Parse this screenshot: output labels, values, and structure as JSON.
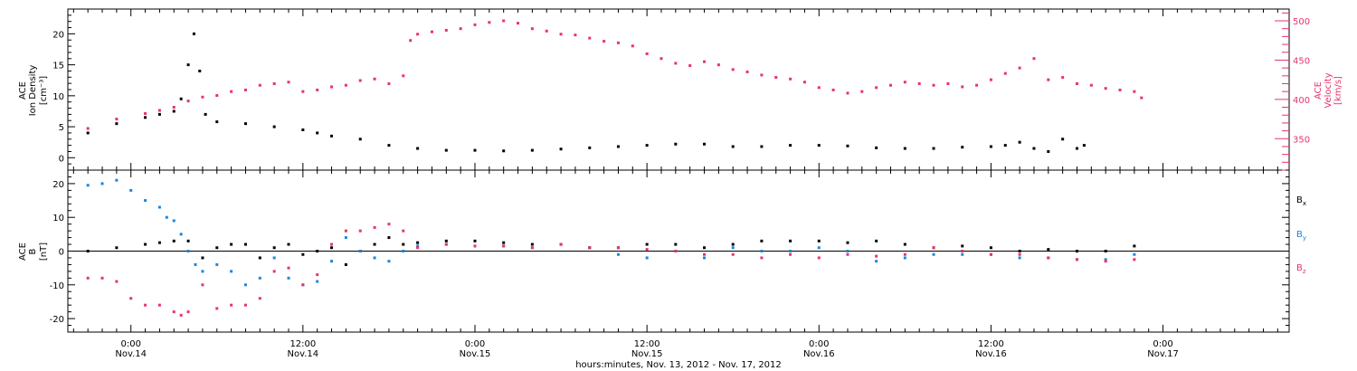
{
  "chart_data": [
    {
      "type": "scatter",
      "panel": "top",
      "ylabel_left": [
        "ACE",
        "Ion Density",
        "[cm⁻³]"
      ],
      "ylabel_right": [
        "ACE",
        "Velocity",
        "[km/s]"
      ],
      "ylim_left": [
        -2,
        24
      ],
      "ylim_right": [
        310,
        515
      ],
      "yticks_left": [
        0,
        5,
        10,
        15,
        20
      ],
      "yticks_right": [
        350,
        400,
        450,
        500
      ],
      "series": [
        {
          "key": "density",
          "axis": "left",
          "color": "#000000",
          "points": [
            [
              -3,
              4.0
            ],
            [
              -1,
              5.5
            ],
            [
              1,
              6.5
            ],
            [
              2,
              7.0
            ],
            [
              3,
              7.5
            ],
            [
              3.5,
              9.5
            ],
            [
              4,
              15.0
            ],
            [
              4.4,
              20.0
            ],
            [
              4.8,
              14.0
            ],
            [
              5.2,
              7.0
            ],
            [
              6,
              5.8
            ],
            [
              8,
              5.5
            ],
            [
              10,
              5.0
            ],
            [
              12,
              4.5
            ],
            [
              13,
              4.0
            ],
            [
              14,
              3.5
            ],
            [
              16,
              3.0
            ],
            [
              18,
              2.0
            ],
            [
              20,
              1.5
            ],
            [
              22,
              1.2
            ],
            [
              24,
              1.2
            ],
            [
              26,
              1.1
            ],
            [
              28,
              1.2
            ],
            [
              30,
              1.4
            ],
            [
              32,
              1.6
            ],
            [
              34,
              1.8
            ],
            [
              36,
              2.0
            ],
            [
              38,
              2.2
            ],
            [
              40,
              2.2
            ],
            [
              42,
              1.8
            ],
            [
              44,
              1.8
            ],
            [
              46,
              2.0
            ],
            [
              48,
              2.0
            ],
            [
              50,
              1.9
            ],
            [
              52,
              1.6
            ],
            [
              54,
              1.5
            ],
            [
              56,
              1.5
            ],
            [
              58,
              1.7
            ],
            [
              60,
              1.8
            ],
            [
              61,
              2.0
            ],
            [
              62,
              2.5
            ],
            [
              63,
              1.5
            ],
            [
              64,
              1.0
            ],
            [
              65,
              3.0
            ],
            [
              66,
              1.5
            ],
            [
              66.5,
              2.0
            ]
          ]
        },
        {
          "key": "velocity",
          "axis": "right",
          "color": "#e8336b",
          "points": [
            [
              -3,
              363
            ],
            [
              -1,
              375
            ],
            [
              1,
              382
            ],
            [
              2,
              386
            ],
            [
              3,
              390
            ],
            [
              4,
              398
            ],
            [
              5,
              403
            ],
            [
              6,
              405
            ],
            [
              7,
              410
            ],
            [
              8,
              412
            ],
            [
              9,
              418
            ],
            [
              10,
              420
            ],
            [
              11,
              422
            ],
            [
              12,
              410
            ],
            [
              13,
              412
            ],
            [
              14,
              416
            ],
            [
              15,
              418
            ],
            [
              16,
              424
            ],
            [
              17,
              426
            ],
            [
              18,
              420
            ],
            [
              19,
              430
            ],
            [
              19.5,
              475
            ],
            [
              20,
              483
            ],
            [
              21,
              486
            ],
            [
              22,
              488
            ],
            [
              23,
              490
            ],
            [
              24,
              495
            ],
            [
              25,
              498
            ],
            [
              26,
              500
            ],
            [
              27,
              497
            ],
            [
              28,
              490
            ],
            [
              29,
              487
            ],
            [
              30,
              483
            ],
            [
              31,
              482
            ],
            [
              32,
              478
            ],
            [
              33,
              474
            ],
            [
              34,
              472
            ],
            [
              35,
              468
            ],
            [
              36,
              458
            ],
            [
              37,
              452
            ],
            [
              38,
              446
            ],
            [
              39,
              443
            ],
            [
              40,
              448
            ],
            [
              41,
              444
            ],
            [
              42,
              438
            ],
            [
              43,
              435
            ],
            [
              44,
              431
            ],
            [
              45,
              428
            ],
            [
              46,
              426
            ],
            [
              47,
              422
            ],
            [
              48,
              415
            ],
            [
              49,
              412
            ],
            [
              50,
              408
            ],
            [
              51,
              410
            ],
            [
              52,
              415
            ],
            [
              53,
              418
            ],
            [
              54,
              422
            ],
            [
              55,
              420
            ],
            [
              56,
              418
            ],
            [
              57,
              420
            ],
            [
              58,
              416
            ],
            [
              59,
              418
            ],
            [
              60,
              425
            ],
            [
              61,
              433
            ],
            [
              62,
              440
            ],
            [
              63,
              452
            ],
            [
              64,
              425
            ],
            [
              65,
              428
            ],
            [
              66,
              420
            ],
            [
              67,
              418
            ],
            [
              68,
              414
            ],
            [
              69,
              412
            ],
            [
              70,
              410
            ],
            [
              70.5,
              402
            ]
          ]
        }
      ]
    },
    {
      "type": "scatter",
      "panel": "bottom",
      "ylabel_left": [
        "ACE",
        "B",
        "[nT]"
      ],
      "ylim": [
        -24,
        24
      ],
      "yticks": [
        -20,
        -10,
        0,
        10,
        20
      ],
      "zero_line": true,
      "legend": [
        {
          "label": "B",
          "sub": "x",
          "color": "#000000"
        },
        {
          "label": "B",
          "sub": "y",
          "color": "#1a86e0"
        },
        {
          "label": "B",
          "sub": "z",
          "color": "#e8336b"
        }
      ],
      "series": [
        {
          "key": "Bx",
          "color": "#000000",
          "points": [
            [
              -3,
              0
            ],
            [
              -1,
              1
            ],
            [
              1,
              2
            ],
            [
              2,
              2.5
            ],
            [
              3,
              3
            ],
            [
              4,
              3
            ],
            [
              5,
              -2
            ],
            [
              6,
              1
            ],
            [
              7,
              2
            ],
            [
              8,
              2
            ],
            [
              9,
              -2
            ],
            [
              10,
              1
            ],
            [
              11,
              2
            ],
            [
              12,
              -1
            ],
            [
              13,
              0
            ],
            [
              14,
              1
            ],
            [
              15,
              -4
            ],
            [
              16,
              0
            ],
            [
              17,
              2
            ],
            [
              18,
              4
            ],
            [
              19,
              2
            ],
            [
              20,
              2.5
            ],
            [
              22,
              3
            ],
            [
              24,
              3
            ],
            [
              26,
              2.5
            ],
            [
              28,
              2
            ],
            [
              30,
              2
            ],
            [
              32,
              1
            ],
            [
              34,
              1
            ],
            [
              36,
              2
            ],
            [
              38,
              2
            ],
            [
              40,
              1
            ],
            [
              42,
              2
            ],
            [
              44,
              3
            ],
            [
              46,
              3
            ],
            [
              48,
              3
            ],
            [
              50,
              2.5
            ],
            [
              52,
              3
            ],
            [
              54,
              2
            ],
            [
              56,
              1
            ],
            [
              58,
              1.5
            ],
            [
              60,
              1
            ],
            [
              62,
              0
            ],
            [
              64,
              0.5
            ],
            [
              66,
              0
            ],
            [
              68,
              0
            ],
            [
              70,
              1.5
            ]
          ]
        },
        {
          "key": "By",
          "color": "#1a86e0",
          "points": [
            [
              -3,
              19.5
            ],
            [
              -2,
              20
            ],
            [
              -1,
              21
            ],
            [
              0,
              18
            ],
            [
              1,
              15
            ],
            [
              2,
              13
            ],
            [
              2.5,
              10
            ],
            [
              3,
              9
            ],
            [
              3.5,
              5
            ],
            [
              4,
              0
            ],
            [
              4.5,
              -4
            ],
            [
              5,
              -6
            ],
            [
              6,
              -4
            ],
            [
              7,
              -6
            ],
            [
              8,
              -10
            ],
            [
              9,
              -8
            ],
            [
              10,
              -2
            ],
            [
              11,
              -8
            ],
            [
              12,
              -10
            ],
            [
              13,
              -9
            ],
            [
              14,
              -3
            ],
            [
              15,
              4
            ],
            [
              16,
              0
            ],
            [
              17,
              -2
            ],
            [
              18,
              -3
            ],
            [
              19,
              0
            ],
            [
              20,
              1.5
            ],
            [
              22,
              2
            ],
            [
              24,
              1.5
            ],
            [
              26,
              1.5
            ],
            [
              28,
              1
            ],
            [
              30,
              2
            ],
            [
              32,
              1
            ],
            [
              34,
              -1
            ],
            [
              36,
              -2
            ],
            [
              38,
              0
            ],
            [
              40,
              -2
            ],
            [
              42,
              1
            ],
            [
              44,
              0
            ],
            [
              46,
              0
            ],
            [
              48,
              1
            ],
            [
              50,
              0
            ],
            [
              52,
              -3
            ],
            [
              54,
              -2
            ],
            [
              56,
              -1
            ],
            [
              58,
              -1
            ],
            [
              60,
              -1
            ],
            [
              62,
              -2
            ],
            [
              64,
              -2
            ],
            [
              66,
              -2.5
            ],
            [
              68,
              -2.5
            ],
            [
              70,
              -1
            ]
          ]
        },
        {
          "key": "Bz",
          "color": "#e8336b",
          "points": [
            [
              -3,
              -8
            ],
            [
              -2,
              -8
            ],
            [
              -1,
              -9
            ],
            [
              0,
              -14
            ],
            [
              1,
              -16
            ],
            [
              2,
              -16
            ],
            [
              3,
              -18
            ],
            [
              3.5,
              -19
            ],
            [
              4,
              -18
            ],
            [
              5,
              -10
            ],
            [
              6,
              -17
            ],
            [
              7,
              -16
            ],
            [
              8,
              -16
            ],
            [
              9,
              -14
            ],
            [
              10,
              -6
            ],
            [
              11,
              -5
            ],
            [
              12,
              -10
            ],
            [
              13,
              -7
            ],
            [
              14,
              2
            ],
            [
              15,
              6
            ],
            [
              16,
              6
            ],
            [
              17,
              7
            ],
            [
              18,
              8
            ],
            [
              19,
              6
            ],
            [
              20,
              1
            ],
            [
              22,
              2
            ],
            [
              24,
              1.5
            ],
            [
              26,
              1.5
            ],
            [
              28,
              1
            ],
            [
              30,
              2
            ],
            [
              32,
              1
            ],
            [
              34,
              1
            ],
            [
              36,
              0.5
            ],
            [
              38,
              0
            ],
            [
              40,
              -1
            ],
            [
              42,
              -1
            ],
            [
              44,
              -2
            ],
            [
              46,
              -1
            ],
            [
              48,
              -2
            ],
            [
              50,
              -1
            ],
            [
              52,
              -1.5
            ],
            [
              54,
              -1
            ],
            [
              56,
              1
            ],
            [
              58,
              0
            ],
            [
              60,
              -1
            ],
            [
              62,
              -1
            ],
            [
              64,
              -2
            ],
            [
              66,
              -2.5
            ],
            [
              68,
              -3
            ],
            [
              70,
              -2.5
            ]
          ]
        }
      ]
    }
  ],
  "xaxis": {
    "range_hours": [
      -4.4,
      80.8
    ],
    "major_ticks": [
      {
        "h": 0,
        "time": "0:00",
        "date": "Nov.14"
      },
      {
        "h": 12,
        "time": "12:00",
        "date": "Nov.14"
      },
      {
        "h": 24,
        "time": "0:00",
        "date": "Nov.15"
      },
      {
        "h": 36,
        "time": "12:00",
        "date": "Nov.15"
      },
      {
        "h": 48,
        "time": "0:00",
        "date": "Nov.16"
      },
      {
        "h": 60,
        "time": "12:00",
        "date": "Nov.16"
      },
      {
        "h": 72,
        "time": "0:00",
        "date": "Nov.17"
      }
    ],
    "title": "hours:minutes, Nov. 13, 2012 - Nov. 17, 2012"
  },
  "colors": {
    "density": "#000000",
    "velocity": "#e8336b",
    "bx": "#000000",
    "by": "#1a86e0",
    "bz": "#e8336b"
  }
}
